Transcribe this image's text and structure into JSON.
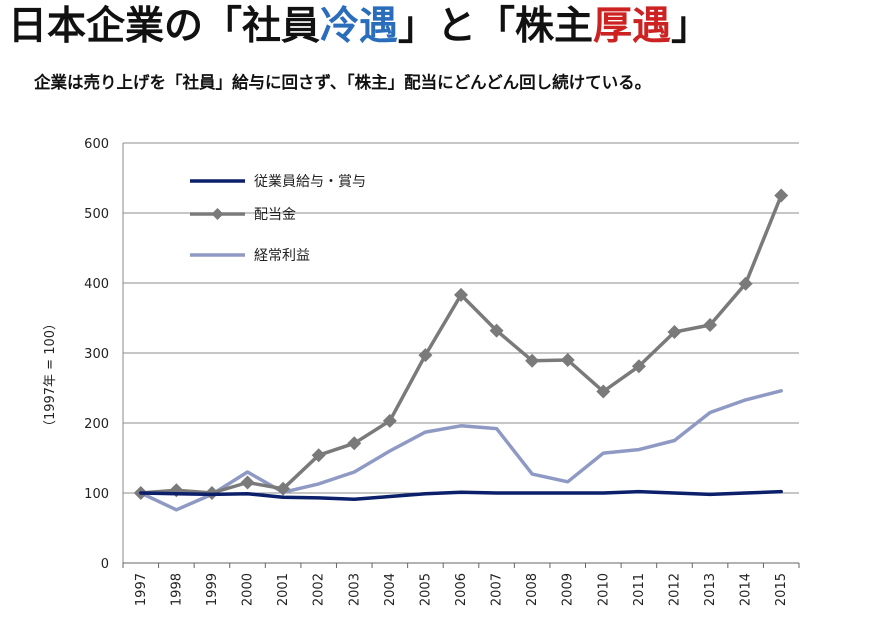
{
  "header": {
    "title_prefix": "日本企業の「社員",
    "title_blue": "冷遇",
    "title_mid": "」と「株主",
    "title_red": "厚遇",
    "title_suffix": "」",
    "subtitle": "企業は売り上げを「社員」給与に回さず、「株主」配当にどんどん回し続けている。"
  },
  "colors": {
    "title_blue": "#2a6ebb",
    "title_red": "#cc2222"
  },
  "chart_data": {
    "type": "line",
    "title": "",
    "xlabel": "",
    "ylabel": "（1997年 = 100）",
    "ylim": [
      0,
      600
    ],
    "yticks": [
      "0",
      "100",
      "200",
      "300",
      "400",
      "500",
      "600"
    ],
    "grid": true,
    "legend_position": "top-left",
    "categories": [
      "1997",
      "1998",
      "1999",
      "2000",
      "2001",
      "2002",
      "2003",
      "2004",
      "2005",
      "2006",
      "2007",
      "2008",
      "2009",
      "2010",
      "2011",
      "2012",
      "2013",
      "2014",
      "2015"
    ],
    "series": [
      {
        "name": "従業員給与・賞与",
        "color": "#0b1f6b",
        "marker": "none",
        "values": [
          100,
          99,
          98,
          99,
          94,
          93,
          91,
          95,
          99,
          101,
          100,
          100,
          100,
          100,
          102,
          100,
          98,
          100,
          102
        ]
      },
      {
        "name": "配当金",
        "color": "#7a7a7a",
        "marker": "diamond",
        "values": [
          100,
          104,
          100,
          115,
          106,
          154,
          171,
          203,
          297,
          383,
          332,
          289,
          290,
          245,
          281,
          330,
          340,
          399,
          525
        ]
      },
      {
        "name": "経常利益",
        "color": "#8f9ac4",
        "marker": "none",
        "values": [
          100,
          76,
          98,
          130,
          101,
          113,
          130,
          160,
          187,
          196,
          192,
          127,
          116,
          157,
          162,
          175,
          215,
          233,
          246
        ]
      }
    ]
  }
}
